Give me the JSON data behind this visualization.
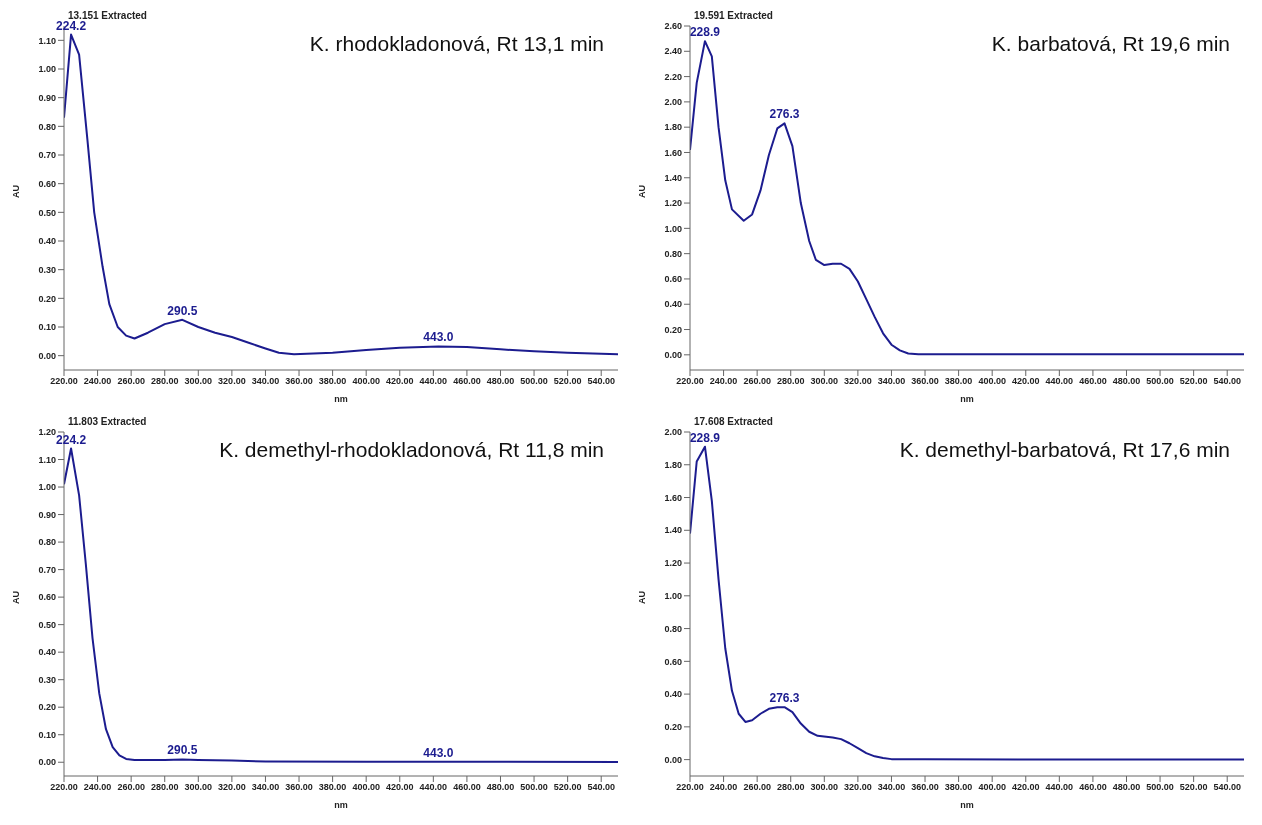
{
  "chart_data": [
    {
      "type": "line",
      "title": "13.151 Extracted",
      "subtitle": "K. rhodokladonová, Rt 13,1 min",
      "xlabel": "nm",
      "ylabel": "AU",
      "x": [
        220,
        224.2,
        229,
        234,
        238,
        243,
        247,
        252,
        257,
        262,
        270,
        280,
        290.5,
        300,
        310,
        320,
        330,
        340,
        348,
        357,
        380,
        400,
        420,
        443,
        460,
        480,
        500,
        520,
        550
      ],
      "series": [
        {
          "color": "#1c1c8f",
          "values": [
            0.83,
            1.12,
            1.05,
            0.75,
            0.5,
            0.31,
            0.18,
            0.1,
            0.07,
            0.06,
            0.08,
            0.11,
            0.125,
            0.1,
            0.08,
            0.065,
            0.045,
            0.025,
            0.01,
            0.005,
            0.01,
            0.02,
            0.028,
            0.032,
            0.03,
            0.022,
            0.015,
            0.01,
            0.005
          ]
        }
      ],
      "xlim": [
        220,
        550
      ],
      "ylim": [
        -0.05,
        1.15
      ],
      "xticks": [
        {
          "value": 220,
          "label": "220.00"
        },
        {
          "value": 240,
          "label": "240.00"
        },
        {
          "value": 260,
          "label": "260.00"
        },
        {
          "value": 280,
          "label": "280.00"
        },
        {
          "value": 300,
          "label": "300.00"
        },
        {
          "value": 320,
          "label": "320.00"
        },
        {
          "value": 340,
          "label": "340.00"
        },
        {
          "value": 360,
          "label": "360.00"
        },
        {
          "value": 380,
          "label": "380.00"
        },
        {
          "value": 400,
          "label": "400.00"
        },
        {
          "value": 420,
          "label": "420.00"
        },
        {
          "value": 440,
          "label": "440.00"
        },
        {
          "value": 460,
          "label": "460.00"
        },
        {
          "value": 480,
          "label": "480.00"
        },
        {
          "value": 500,
          "label": "500.00"
        },
        {
          "value": 520,
          "label": "520.00"
        },
        {
          "value": 540,
          "label": "540.00"
        }
      ],
      "yticks": [
        {
          "value": 0,
          "label": "0.00"
        },
        {
          "value": 0.1,
          "label": "0.10"
        },
        {
          "value": 0.2,
          "label": "0.20"
        },
        {
          "value": 0.3,
          "label": "0.30"
        },
        {
          "value": 0.4,
          "label": "0.40"
        },
        {
          "value": 0.5,
          "label": "0.50"
        },
        {
          "value": 0.6,
          "label": "0.60"
        },
        {
          "value": 0.7,
          "label": "0.70"
        },
        {
          "value": 0.8,
          "label": "0.80"
        },
        {
          "value": 0.9,
          "label": "0.90"
        },
        {
          "value": 1,
          "label": "1.00"
        },
        {
          "value": 1.1,
          "label": "1.10"
        }
      ],
      "annotations": [
        {
          "text": "224.2",
          "x": 224.2,
          "y": 1.12
        },
        {
          "text": "290.5",
          "x": 290.5,
          "y": 0.125
        },
        {
          "text": "443.0",
          "x": 443,
          "y": 0.032
        }
      ]
    },
    {
      "type": "line",
      "title": "19.591 Extracted",
      "subtitle": "K. barbatová, Rt 19,6 min",
      "xlabel": "nm",
      "ylabel": "AU",
      "x": [
        220,
        224,
        228.9,
        233,
        237,
        241,
        245,
        252,
        257,
        262,
        267,
        272,
        276.3,
        281,
        286,
        291,
        295,
        300,
        305,
        310,
        315,
        320,
        325,
        330,
        335,
        340,
        345,
        350,
        356,
        550
      ],
      "series": [
        {
          "color": "#1c1c8f",
          "values": [
            1.62,
            2.15,
            2.48,
            2.36,
            1.8,
            1.38,
            1.15,
            1.06,
            1.11,
            1.3,
            1.58,
            1.79,
            1.83,
            1.65,
            1.2,
            0.9,
            0.75,
            0.71,
            0.72,
            0.72,
            0.68,
            0.58,
            0.44,
            0.3,
            0.17,
            0.08,
            0.035,
            0.01,
            0.005,
            0.005
          ]
        }
      ],
      "xlim": [
        220,
        550
      ],
      "ylim": [
        -0.12,
        2.6
      ],
      "xticks": [
        {
          "value": 220,
          "label": "220.00"
        },
        {
          "value": 240,
          "label": "240.00"
        },
        {
          "value": 260,
          "label": "260.00"
        },
        {
          "value": 280,
          "label": "280.00"
        },
        {
          "value": 300,
          "label": "300.00"
        },
        {
          "value": 320,
          "label": "320.00"
        },
        {
          "value": 340,
          "label": "340.00"
        },
        {
          "value": 360,
          "label": "360.00"
        },
        {
          "value": 380,
          "label": "380.00"
        },
        {
          "value": 400,
          "label": "400.00"
        },
        {
          "value": 420,
          "label": "420.00"
        },
        {
          "value": 440,
          "label": "440.00"
        },
        {
          "value": 460,
          "label": "460.00"
        },
        {
          "value": 480,
          "label": "480.00"
        },
        {
          "value": 500,
          "label": "500.00"
        },
        {
          "value": 520,
          "label": "520.00"
        },
        {
          "value": 540,
          "label": "540.00"
        }
      ],
      "yticks": [
        {
          "value": 0,
          "label": "0.00"
        },
        {
          "value": 0.2,
          "label": "0.20"
        },
        {
          "value": 0.4,
          "label": "0.40"
        },
        {
          "value": 0.6,
          "label": "0.60"
        },
        {
          "value": 0.8,
          "label": "0.80"
        },
        {
          "value": 1,
          "label": "1.00"
        },
        {
          "value": 1.2,
          "label": "1.20"
        },
        {
          "value": 1.4,
          "label": "1.40"
        },
        {
          "value": 1.6,
          "label": "1.60"
        },
        {
          "value": 1.8,
          "label": "1.80"
        },
        {
          "value": 2,
          "label": "2.00"
        },
        {
          "value": 2.2,
          "label": "2.20"
        },
        {
          "value": 2.4,
          "label": "2.40"
        },
        {
          "value": 2.6,
          "label": "2.60"
        }
      ],
      "annotations": [
        {
          "text": "228.9",
          "x": 228.9,
          "y": 2.48
        },
        {
          "text": "276.3",
          "x": 276.3,
          "y": 1.83
        }
      ]
    },
    {
      "type": "line",
      "title": "11.803 Extracted",
      "subtitle": "K. demethyl-rhodokladonová, Rt 11,8 min",
      "xlabel": "nm",
      "ylabel": "AU",
      "x": [
        220,
        224.2,
        229,
        233,
        237,
        241,
        245,
        249,
        253,
        257,
        262,
        280,
        290.5,
        300,
        320,
        340,
        400,
        443,
        550
      ],
      "series": [
        {
          "color": "#1c1c8f",
          "values": [
            1.01,
            1.14,
            0.97,
            0.72,
            0.45,
            0.25,
            0.12,
            0.055,
            0.025,
            0.012,
            0.008,
            0.008,
            0.01,
            0.008,
            0.006,
            0.003,
            0.002,
            0.002,
            0.001
          ]
        }
      ],
      "xlim": [
        220,
        550
      ],
      "ylim": [
        -0.05,
        1.2
      ],
      "xticks": [
        {
          "value": 220,
          "label": "220.00"
        },
        {
          "value": 240,
          "label": "240.00"
        },
        {
          "value": 260,
          "label": "260.00"
        },
        {
          "value": 280,
          "label": "280.00"
        },
        {
          "value": 300,
          "label": "300.00"
        },
        {
          "value": 320,
          "label": "320.00"
        },
        {
          "value": 340,
          "label": "340.00"
        },
        {
          "value": 360,
          "label": "360.00"
        },
        {
          "value": 380,
          "label": "380.00"
        },
        {
          "value": 400,
          "label": "400.00"
        },
        {
          "value": 420,
          "label": "420.00"
        },
        {
          "value": 440,
          "label": "440.00"
        },
        {
          "value": 460,
          "label": "460.00"
        },
        {
          "value": 480,
          "label": "480.00"
        },
        {
          "value": 500,
          "label": "500.00"
        },
        {
          "value": 520,
          "label": "520.00"
        },
        {
          "value": 540,
          "label": "540.00"
        }
      ],
      "yticks": [
        {
          "value": 0,
          "label": "0.00"
        },
        {
          "value": 0.1,
          "label": "0.10"
        },
        {
          "value": 0.2,
          "label": "0.20"
        },
        {
          "value": 0.3,
          "label": "0.30"
        },
        {
          "value": 0.4,
          "label": "0.40"
        },
        {
          "value": 0.5,
          "label": "0.50"
        },
        {
          "value": 0.6,
          "label": "0.60"
        },
        {
          "value": 0.7,
          "label": "0.70"
        },
        {
          "value": 0.8,
          "label": "0.80"
        },
        {
          "value": 0.9,
          "label": "0.90"
        },
        {
          "value": 1,
          "label": "1.00"
        },
        {
          "value": 1.1,
          "label": "1.10"
        },
        {
          "value": 1.2,
          "label": "1.20"
        }
      ],
      "annotations": [
        {
          "text": "224.2",
          "x": 224.2,
          "y": 1.14
        },
        {
          "text": "290.5",
          "x": 290.5,
          "y": 0.01
        },
        {
          "text": "443.0",
          "x": 443,
          "y": 0.002
        }
      ]
    },
    {
      "type": "line",
      "title": "17.608 Extracted",
      "subtitle": "K. demethyl-barbatová, Rt 17,6 min",
      "xlabel": "nm",
      "ylabel": "AU",
      "x": [
        220,
        224,
        228.9,
        233,
        237,
        241,
        245,
        249,
        253,
        257,
        262,
        267,
        272,
        276.3,
        281,
        286,
        291,
        296,
        305,
        310,
        315,
        320,
        325,
        330,
        335,
        340,
        360,
        550
      ],
      "series": [
        {
          "color": "#1c1c8f",
          "values": [
            1.38,
            1.82,
            1.91,
            1.58,
            1.1,
            0.68,
            0.42,
            0.28,
            0.23,
            0.24,
            0.28,
            0.31,
            0.32,
            0.32,
            0.29,
            0.22,
            0.17,
            0.145,
            0.135,
            0.125,
            0.1,
            0.07,
            0.04,
            0.02,
            0.01,
            0.003,
            0.002,
            0
          ]
        }
      ],
      "xlim": [
        220,
        550
      ],
      "ylim": [
        -0.1,
        2
      ],
      "xticks": [
        {
          "value": 220,
          "label": "220.00"
        },
        {
          "value": 240,
          "label": "240.00"
        },
        {
          "value": 260,
          "label": "260.00"
        },
        {
          "value": 280,
          "label": "280.00"
        },
        {
          "value": 300,
          "label": "300.00"
        },
        {
          "value": 320,
          "label": "320.00"
        },
        {
          "value": 340,
          "label": "340.00"
        },
        {
          "value": 360,
          "label": "360.00"
        },
        {
          "value": 380,
          "label": "380.00"
        },
        {
          "value": 400,
          "label": "400.00"
        },
        {
          "value": 420,
          "label": "420.00"
        },
        {
          "value": 440,
          "label": "440.00"
        },
        {
          "value": 460,
          "label": "460.00"
        },
        {
          "value": 480,
          "label": "480.00"
        },
        {
          "value": 500,
          "label": "500.00"
        },
        {
          "value": 520,
          "label": "520.00"
        },
        {
          "value": 540,
          "label": "540.00"
        }
      ],
      "yticks": [
        {
          "value": 0,
          "label": "0.00"
        },
        {
          "value": 0.2,
          "label": "0.20"
        },
        {
          "value": 0.4,
          "label": "0.40"
        },
        {
          "value": 0.6,
          "label": "0.60"
        },
        {
          "value": 0.8,
          "label": "0.80"
        },
        {
          "value": 1,
          "label": "1.00"
        },
        {
          "value": 1.2,
          "label": "1.20"
        },
        {
          "value": 1.4,
          "label": "1.40"
        },
        {
          "value": 1.6,
          "label": "1.60"
        },
        {
          "value": 1.8,
          "label": "1.80"
        },
        {
          "value": 2,
          "label": "2.00"
        }
      ],
      "annotations": [
        {
          "text": "228.9",
          "x": 228.9,
          "y": 1.91
        },
        {
          "text": "276.3",
          "x": 276.3,
          "y": 0.32
        }
      ]
    }
  ]
}
